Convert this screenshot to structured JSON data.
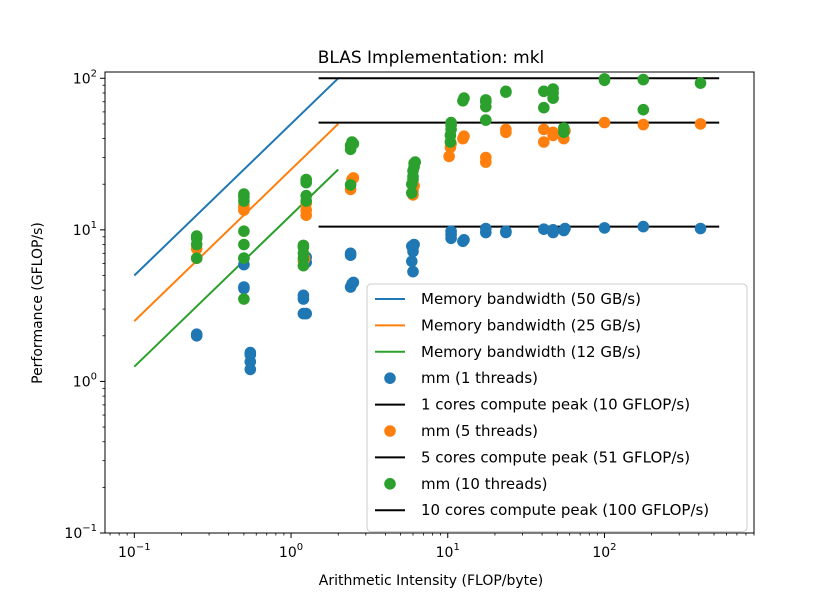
{
  "chart_data": {
    "type": "scatter",
    "title": "BLAS Implementation: mkl",
    "xlabel": "Arithmetic Intensity (FLOP/byte)",
    "ylabel": "Performance (GFLOP/s)",
    "xscale": "log",
    "yscale": "log",
    "xlim": [
      0.065,
      900
    ],
    "ylim": [
      0.1,
      110
    ],
    "x_ticks": [
      {
        "base": "10",
        "exp": "−1",
        "value": 0.1
      },
      {
        "base": "10",
        "exp": "0",
        "value": 1
      },
      {
        "base": "10",
        "exp": "1",
        "value": 10
      },
      {
        "base": "10",
        "exp": "2",
        "value": 100
      }
    ],
    "y_ticks": [
      {
        "base": "10",
        "exp": "−1",
        "value": 0.1
      },
      {
        "base": "10",
        "exp": "0",
        "value": 1
      },
      {
        "base": "10",
        "exp": "1",
        "value": 10
      },
      {
        "base": "10",
        "exp": "2",
        "value": 100
      }
    ],
    "grid": false,
    "legend_position": "lower-right",
    "lines": [
      {
        "name": "Memory bandwidth (50 GB/s)",
        "color": "#1f77b4",
        "x": [
          0.1,
          2
        ],
        "y": [
          5,
          100
        ]
      },
      {
        "name": "Memory bandwidth (25 GB/s)",
        "color": "#ff7f0e",
        "x": [
          0.1,
          2
        ],
        "y": [
          2.5,
          50
        ]
      },
      {
        "name": "Memory bandwidth (12 GB/s)",
        "color": "#2ca02c",
        "x": [
          0.1,
          2
        ],
        "y": [
          1.25,
          25
        ]
      },
      {
        "name": "1 cores compute peak (10 GFLOP/s)",
        "color": "#000000",
        "x": [
          1.5,
          540
        ],
        "y": [
          10.5,
          10.5
        ]
      },
      {
        "name": "5 cores compute peak (51 GFLOP/s)",
        "color": "#000000",
        "x": [
          1.5,
          540
        ],
        "y": [
          51,
          51
        ]
      },
      {
        "name": "10 cores compute peak (100 GFLOP/s)",
        "color": "#000000",
        "x": [
          1.5,
          540
        ],
        "y": [
          100,
          100
        ]
      }
    ],
    "series": [
      {
        "name": "mm (1 threads)",
        "color": "#1f77b4",
        "points": [
          [
            0.25,
            2.0
          ],
          [
            0.25,
            2.05
          ],
          [
            0.5,
            4.1
          ],
          [
            0.5,
            4.2
          ],
          [
            0.5,
            5.9
          ],
          [
            0.5,
            6.5
          ],
          [
            0.55,
            1.2
          ],
          [
            0.55,
            1.35
          ],
          [
            0.55,
            1.5
          ],
          [
            0.55,
            1.55
          ],
          [
            1.2,
            2.8
          ],
          [
            1.2,
            3.5
          ],
          [
            1.2,
            3.7
          ],
          [
            1.25,
            2.8
          ],
          [
            1.25,
            6.1
          ],
          [
            1.25,
            6.6
          ],
          [
            2.4,
            4.2
          ],
          [
            2.45,
            4.4
          ],
          [
            2.5,
            4.5
          ],
          [
            2.4,
            6.8
          ],
          [
            2.4,
            7.0
          ],
          [
            6.0,
            5.3
          ],
          [
            5.9,
            6.2
          ],
          [
            6.0,
            7.2
          ],
          [
            6.0,
            7.6
          ],
          [
            6.1,
            8.0
          ],
          [
            5.9,
            7.8
          ],
          [
            10.5,
            8.8
          ],
          [
            10.5,
            9.3
          ],
          [
            10.5,
            9.8
          ],
          [
            12.5,
            8.4
          ],
          [
            12.7,
            8.6
          ],
          [
            17.5,
            9.6
          ],
          [
            17.5,
            10.2
          ],
          [
            23.5,
            9.6
          ],
          [
            23.5,
            9.8
          ],
          [
            41,
            10.1
          ],
          [
            47,
            9.6
          ],
          [
            47,
            10.0
          ],
          [
            55,
            9.9
          ],
          [
            56,
            10.2
          ],
          [
            100,
            10.3
          ],
          [
            177,
            10.5
          ],
          [
            410,
            10.2
          ]
        ]
      },
      {
        "name": "mm (5 threads)",
        "color": "#ff7f0e",
        "points": [
          [
            0.25,
            6.5
          ],
          [
            0.25,
            7.5
          ],
          [
            0.5,
            13.5
          ],
          [
            0.5,
            14.0
          ],
          [
            0.5,
            14.5
          ],
          [
            1.2,
            6.2
          ],
          [
            1.22,
            6.5
          ],
          [
            1.25,
            12.5
          ],
          [
            1.25,
            13.5
          ],
          [
            1.25,
            15.0
          ],
          [
            2.4,
            18.5
          ],
          [
            2.45,
            21.5
          ],
          [
            2.5,
            22.0
          ],
          [
            6.0,
            17.0
          ],
          [
            6.0,
            18.0
          ],
          [
            6.1,
            19.5
          ],
          [
            10.2,
            30.5
          ],
          [
            10.4,
            35
          ],
          [
            10.5,
            37
          ],
          [
            12.5,
            40
          ],
          [
            12.7,
            41.5
          ],
          [
            17.5,
            28
          ],
          [
            17.5,
            30
          ],
          [
            23.5,
            44
          ],
          [
            23.5,
            46
          ],
          [
            41,
            38
          ],
          [
            41,
            46
          ],
          [
            47,
            42
          ],
          [
            47,
            44
          ],
          [
            55,
            40
          ],
          [
            56,
            45
          ],
          [
            100,
            51
          ],
          [
            177,
            49.5
          ],
          [
            410,
            50
          ]
        ]
      },
      {
        "name": "mm (10 threads)",
        "color": "#2ca02c",
        "points": [
          [
            0.25,
            6.5
          ],
          [
            0.25,
            8.0
          ],
          [
            0.25,
            8.8
          ],
          [
            0.25,
            9.1
          ],
          [
            0.5,
            3.5
          ],
          [
            0.5,
            6.5
          ],
          [
            0.5,
            8.0
          ],
          [
            0.5,
            9.8
          ],
          [
            0.5,
            15.5
          ],
          [
            0.5,
            16.5
          ],
          [
            0.5,
            17.2
          ],
          [
            1.2,
            5.8
          ],
          [
            1.2,
            6.5
          ],
          [
            1.2,
            7.0
          ],
          [
            1.2,
            7.7
          ],
          [
            1.2,
            7.9
          ],
          [
            1.25,
            15.5
          ],
          [
            1.25,
            16.8
          ],
          [
            1.25,
            20.5
          ],
          [
            1.25,
            21.5
          ],
          [
            2.4,
            19.8
          ],
          [
            2.4,
            34
          ],
          [
            2.4,
            36
          ],
          [
            2.45,
            38
          ],
          [
            2.5,
            37
          ],
          [
            5.9,
            17.5
          ],
          [
            5.9,
            20
          ],
          [
            6.0,
            21.5
          ],
          [
            6.0,
            22.5
          ],
          [
            6.0,
            24.5
          ],
          [
            6.1,
            26
          ],
          [
            6.1,
            27.5
          ],
          [
            6.2,
            28
          ],
          [
            10.4,
            38
          ],
          [
            10.4,
            42
          ],
          [
            10.5,
            46
          ],
          [
            10.5,
            49
          ],
          [
            10.5,
            51
          ],
          [
            12.5,
            71
          ],
          [
            12.7,
            74
          ],
          [
            17.5,
            53
          ],
          [
            17.5,
            65
          ],
          [
            17.5,
            70
          ],
          [
            17.5,
            72
          ],
          [
            23.5,
            81
          ],
          [
            23.5,
            82
          ],
          [
            41,
            64
          ],
          [
            41,
            82
          ],
          [
            47,
            74
          ],
          [
            47,
            80
          ],
          [
            47,
            85
          ],
          [
            55,
            44
          ],
          [
            55,
            47
          ],
          [
            100,
            97
          ],
          [
            100,
            99
          ],
          [
            177,
            62
          ],
          [
            177,
            98
          ],
          [
            410,
            93
          ]
        ]
      }
    ],
    "legend": [
      {
        "kind": "line",
        "label": "Memory bandwidth (50 GB/s)",
        "color": "#1f77b4"
      },
      {
        "kind": "line",
        "label": "Memory bandwidth (25 GB/s)",
        "color": "#ff7f0e"
      },
      {
        "kind": "line",
        "label": "Memory bandwidth (12 GB/s)",
        "color": "#2ca02c"
      },
      {
        "kind": "marker",
        "label": "mm (1 threads)",
        "color": "#1f77b4"
      },
      {
        "kind": "line",
        "label": "1 cores compute peak (10 GFLOP/s)",
        "color": "#000000"
      },
      {
        "kind": "marker",
        "label": "mm (5 threads)",
        "color": "#ff7f0e"
      },
      {
        "kind": "line",
        "label": "5 cores compute peak (51 GFLOP/s)",
        "color": "#000000"
      },
      {
        "kind": "marker",
        "label": "mm (10 threads)",
        "color": "#2ca02c"
      },
      {
        "kind": "line",
        "label": "10 cores compute peak (100 GFLOP/s)",
        "color": "#000000"
      }
    ]
  }
}
